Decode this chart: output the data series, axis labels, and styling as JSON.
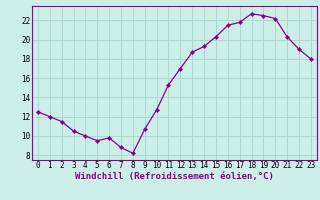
{
  "x": [
    0,
    1,
    2,
    3,
    4,
    5,
    6,
    7,
    8,
    9,
    10,
    11,
    12,
    13,
    14,
    15,
    16,
    17,
    18,
    19,
    20,
    21,
    22,
    23
  ],
  "y": [
    12.5,
    12.0,
    11.5,
    10.5,
    10.0,
    9.5,
    9.8,
    8.8,
    8.2,
    10.7,
    12.7,
    15.3,
    17.0,
    18.7,
    19.3,
    20.3,
    21.5,
    21.8,
    22.7,
    22.5,
    22.2,
    20.3,
    19.0,
    18.0
  ],
  "line_color": "#8b008b",
  "marker": "D",
  "marker_size": 2.2,
  "bg_color": "#cceee8",
  "grid_color": "#aad8d0",
  "xlabel": "Windchill (Refroidissement éolien,°C)",
  "ylabel": "",
  "xlim": [
    -0.5,
    23.5
  ],
  "ylim": [
    7.5,
    23.5
  ],
  "yticks": [
    8,
    10,
    12,
    14,
    16,
    18,
    20,
    22
  ],
  "xticks": [
    0,
    1,
    2,
    3,
    4,
    5,
    6,
    7,
    8,
    9,
    10,
    11,
    12,
    13,
    14,
    15,
    16,
    17,
    18,
    19,
    20,
    21,
    22,
    23
  ],
  "tick_fontsize": 5.5,
  "xlabel_fontsize": 6.5,
  "spine_color": "#8b008b",
  "linewidth": 0.9
}
